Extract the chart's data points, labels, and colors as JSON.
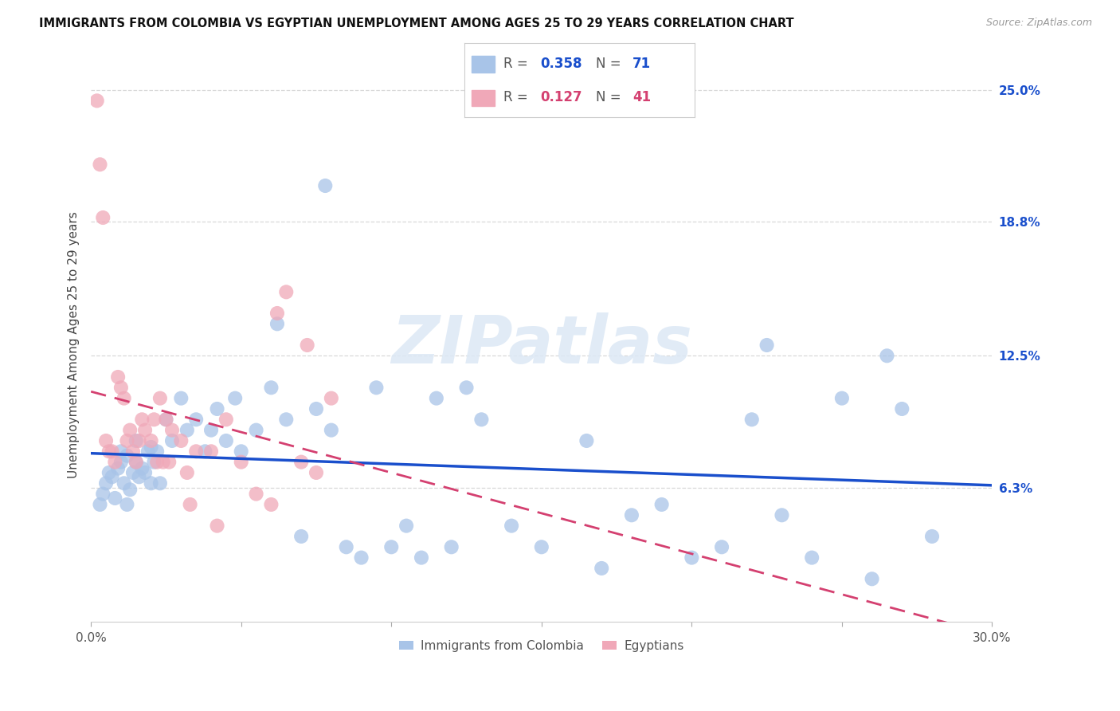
{
  "title": "IMMIGRANTS FROM COLOMBIA VS EGYPTIAN UNEMPLOYMENT AMONG AGES 25 TO 29 YEARS CORRELATION CHART",
  "source_text": "Source: ZipAtlas.com",
  "ylabel": "Unemployment Among Ages 25 to 29 years",
  "xmin": 0.0,
  "xmax": 30.0,
  "ymin": 0.0,
  "ymax": 26.0,
  "right_yticks": [
    6.3,
    12.5,
    18.8,
    25.0
  ],
  "watermark": "ZIPatlas",
  "legend": {
    "blue_label": "Immigrants from Colombia",
    "pink_label": "Egyptians",
    "blue_R": "0.358",
    "blue_N": "71",
    "pink_R": "0.127",
    "pink_N": "41"
  },
  "blue_color": "#a8c4e8",
  "pink_color": "#f0a8b8",
  "blue_line_color": "#1a4fcc",
  "pink_line_color": "#d44070",
  "background_color": "#ffffff",
  "grid_color": "#d8d8d8",
  "colombia_x": [
    0.3,
    0.4,
    0.5,
    0.6,
    0.7,
    0.8,
    0.9,
    1.0,
    1.0,
    1.1,
    1.2,
    1.2,
    1.3,
    1.4,
    1.5,
    1.5,
    1.6,
    1.7,
    1.8,
    1.9,
    2.0,
    2.0,
    2.1,
    2.2,
    2.3,
    2.5,
    2.7,
    3.0,
    3.2,
    3.5,
    4.0,
    4.2,
    4.5,
    5.0,
    5.5,
    6.0,
    6.5,
    7.0,
    7.5,
    8.0,
    8.5,
    9.0,
    9.5,
    10.0,
    10.5,
    11.0,
    11.5,
    12.0,
    12.5,
    13.0,
    14.0,
    15.0,
    16.5,
    17.0,
    18.0,
    19.0,
    20.0,
    21.0,
    22.0,
    23.0,
    24.0,
    25.0,
    26.0,
    27.0,
    28.0,
    3.8,
    4.8,
    6.2,
    7.8,
    22.5,
    26.5
  ],
  "colombia_y": [
    5.5,
    6.0,
    6.5,
    7.0,
    6.8,
    5.8,
    7.2,
    7.5,
    8.0,
    6.5,
    7.8,
    5.5,
    6.2,
    7.0,
    7.5,
    8.5,
    6.8,
    7.2,
    7.0,
    8.0,
    8.2,
    6.5,
    7.5,
    8.0,
    6.5,
    9.5,
    8.5,
    10.5,
    9.0,
    9.5,
    9.0,
    10.0,
    8.5,
    8.0,
    9.0,
    11.0,
    9.5,
    4.0,
    10.0,
    9.0,
    3.5,
    3.0,
    11.0,
    3.5,
    4.5,
    3.0,
    10.5,
    3.5,
    11.0,
    9.5,
    4.5,
    3.5,
    8.5,
    2.5,
    5.0,
    5.5,
    3.0,
    3.5,
    9.5,
    5.0,
    3.0,
    10.5,
    2.0,
    10.0,
    4.0,
    8.0,
    10.5,
    14.0,
    20.5,
    13.0,
    12.5
  ],
  "egypt_x": [
    0.2,
    0.3,
    0.5,
    0.7,
    0.9,
    1.0,
    1.1,
    1.2,
    1.4,
    1.5,
    1.6,
    1.8,
    2.0,
    2.1,
    2.2,
    2.4,
    2.5,
    2.7,
    3.0,
    3.2,
    3.5,
    4.0,
    4.5,
    5.0,
    5.5,
    6.0,
    6.5,
    7.0,
    7.5,
    8.0,
    0.4,
    0.6,
    0.8,
    1.3,
    1.7,
    2.3,
    2.6,
    3.3,
    4.2,
    6.2,
    7.2
  ],
  "egypt_y": [
    24.5,
    21.5,
    8.5,
    8.0,
    11.5,
    11.0,
    10.5,
    8.5,
    8.0,
    7.5,
    8.5,
    9.0,
    8.5,
    9.5,
    7.5,
    7.5,
    9.5,
    9.0,
    8.5,
    7.0,
    8.0,
    8.0,
    9.5,
    7.5,
    6.0,
    5.5,
    15.5,
    7.5,
    7.0,
    10.5,
    19.0,
    8.0,
    7.5,
    9.0,
    9.5,
    10.5,
    7.5,
    5.5,
    4.5,
    14.5,
    13.0
  ]
}
